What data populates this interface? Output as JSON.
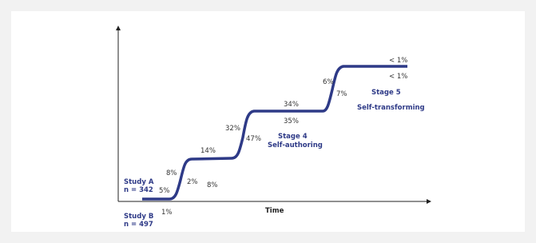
{
  "study_a": {
    "name": "Study A",
    "n": "n = 342"
  },
  "study_b": {
    "name": "Study B",
    "n": "n = 497"
  },
  "x_axis_label": "Time",
  "stage_4": {
    "name": "Stage 4",
    "label": "Self-authoring"
  },
  "stage_5": {
    "name": "Stage 5",
    "label": "Self-transforming"
  },
  "percentages": [
    "5%",
    "1%",
    "8%",
    "2%",
    "8%",
    "14%",
    "32%",
    "47%",
    "34%",
    "35%",
    "6%",
    "7%",
    "< 1%",
    "< 1%"
  ]
}
